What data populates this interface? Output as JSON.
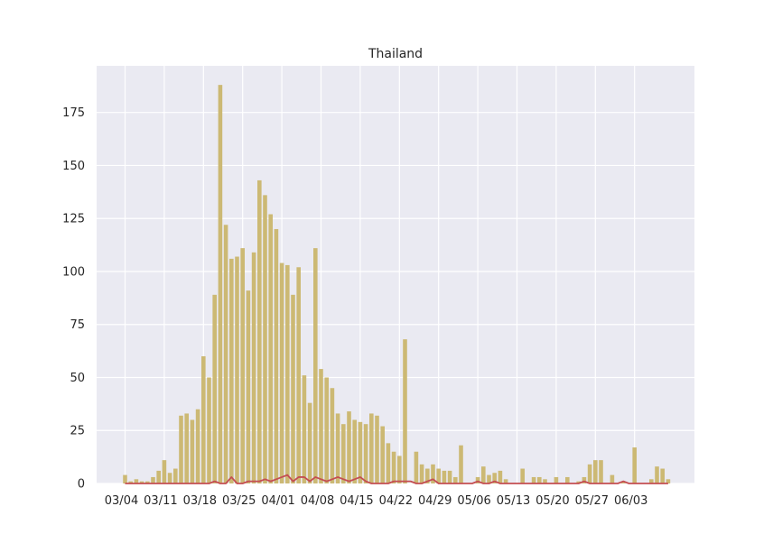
{
  "chart_data": {
    "type": "bar",
    "title": "Thailand",
    "xlabel": "",
    "ylabel": "",
    "ylim": [
      0,
      197
    ],
    "grid": true,
    "x_start": "2020-03-04",
    "x_tick_labels": [
      "03/04",
      "03/11",
      "03/18",
      "03/25",
      "04/01",
      "04/08",
      "04/15",
      "04/22",
      "04/29",
      "05/06",
      "05/13",
      "05/20",
      "05/27",
      "06/03"
    ],
    "y_ticks": [
      0,
      25,
      50,
      75,
      100,
      125,
      150,
      175
    ],
    "series": [
      {
        "type": "bar",
        "color": "#ccb974",
        "values": [
          4,
          1,
          2,
          1,
          1,
          3,
          6,
          11,
          5,
          7,
          32,
          33,
          30,
          35,
          60,
          50,
          89,
          188,
          122,
          106,
          107,
          111,
          91,
          109,
          143,
          136,
          127,
          120,
          104,
          103,
          89,
          102,
          51,
          38,
          111,
          54,
          50,
          45,
          33,
          28,
          34,
          30,
          29,
          28,
          33,
          32,
          27,
          19,
          15,
          13,
          68,
          0,
          15,
          9,
          7,
          9,
          7,
          6,
          6,
          3,
          18,
          0,
          0,
          3,
          8,
          4,
          5,
          6,
          2,
          0,
          0,
          7,
          0,
          3,
          3,
          2,
          0,
          3,
          0,
          3,
          0,
          1,
          3,
          9,
          11,
          11,
          0,
          4,
          0,
          1,
          0,
          17,
          0,
          0,
          2,
          8,
          7,
          2
        ]
      },
      {
        "type": "line",
        "color": "#c44e52",
        "values": [
          0,
          0,
          0,
          0,
          0,
          0,
          0,
          0,
          0,
          0,
          0,
          0,
          0,
          0,
          0,
          0,
          1,
          0,
          0,
          3,
          0,
          0,
          1,
          1,
          1,
          2,
          1,
          2,
          3,
          4,
          1,
          3,
          3,
          1,
          3,
          2,
          1,
          2,
          3,
          2,
          1,
          2,
          3,
          1,
          0,
          0,
          0,
          0,
          1,
          1,
          1,
          1,
          0,
          0,
          1,
          2,
          0,
          0,
          0,
          0,
          0,
          0,
          0,
          1,
          0,
          0,
          1,
          0,
          0,
          0,
          0,
          0,
          0,
          0,
          0,
          0,
          0,
          0,
          0,
          0,
          0,
          0,
          1,
          0,
          0,
          0,
          0,
          0,
          0,
          1,
          0,
          0,
          0,
          0,
          0,
          0,
          0,
          0
        ]
      }
    ]
  }
}
